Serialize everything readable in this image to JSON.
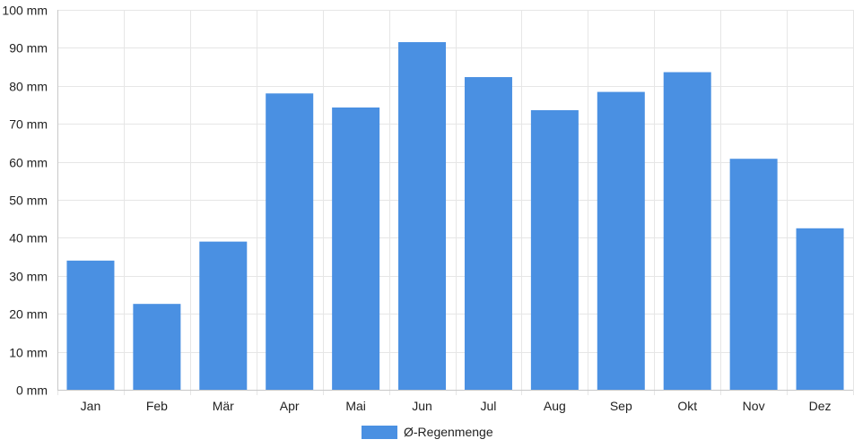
{
  "chart_data": {
    "type": "bar",
    "categories": [
      "Jan",
      "Feb",
      "Mär",
      "Apr",
      "Mai",
      "Jun",
      "Jul",
      "Aug",
      "Sep",
      "Okt",
      "Nov",
      "Dez"
    ],
    "series": [
      {
        "name": "Ø-Regenmenge",
        "values": [
          34,
          22.6,
          39,
          78,
          74.3,
          91.5,
          82.3,
          73.6,
          78.4,
          83.6,
          60.8,
          42.5
        ],
        "color": "#4a90e2"
      }
    ],
    "ylim": [
      0,
      100
    ],
    "yticks": [
      0,
      10,
      20,
      30,
      40,
      50,
      60,
      70,
      80,
      90,
      100
    ],
    "yunit": "mm",
    "ytick_labels": [
      "0 mm",
      "10 mm",
      "20 mm",
      "30 mm",
      "40 mm",
      "50 mm",
      "60 mm",
      "70 mm",
      "80 mm",
      "90 mm",
      "100 mm"
    ],
    "grid": true,
    "legend": "bottom-center",
    "colors": {
      "bar": "#4a90e2",
      "grid": "#e6e6e6",
      "axis": "#c8c8c8"
    }
  }
}
